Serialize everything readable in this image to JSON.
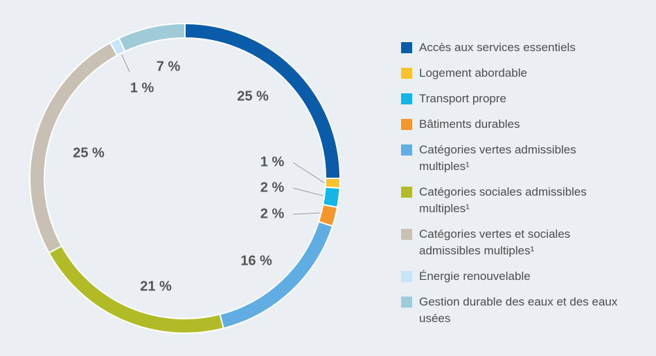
{
  "chart_data": {
    "type": "donut",
    "series": [
      {
        "name": "Accès aux services essentiels",
        "color": "#0b5ca8",
        "values": [
          25
        ],
        "value_labels": [
          "25 %"
        ]
      },
      {
        "name": "Logement abordable",
        "color": "#f8c32c",
        "values": [
          1
        ],
        "value_labels": [
          "1 %"
        ]
      },
      {
        "name": "Transport propre",
        "color": "#14b6e6",
        "values": [
          2
        ],
        "value_labels": [
          "2 %"
        ]
      },
      {
        "name": "Bâtiments durables",
        "color": "#f3962b",
        "values": [
          2
        ],
        "value_labels": [
          "2 %"
        ]
      },
      {
        "name": "Catégories vertes admissibles multiples¹",
        "color": "#5fade2",
        "values": [
          16
        ],
        "value_labels": [
          "16 %"
        ]
      },
      {
        "name": "Catégories sociales admissibles multiples¹",
        "color": "#b1bb26",
        "values": [
          21
        ],
        "value_labels": [
          "21 %"
        ]
      },
      {
        "name": "Catégories vertes et sociales admissibles multiples¹",
        "color": "#c9c0b4",
        "values": [
          25
        ],
        "value_labels": [
          "25 %"
        ]
      },
      {
        "name": "Énergie renouvelable",
        "color": "#c7e5f6",
        "values": [
          1
        ],
        "value_labels": [
          "1 %"
        ]
      },
      {
        "name": "Gestion durable des eaux et des eaux usées",
        "color": "#9fcbd8",
        "values": [
          7
        ],
        "value_labels": [
          "7 %"
        ]
      }
    ]
  }
}
